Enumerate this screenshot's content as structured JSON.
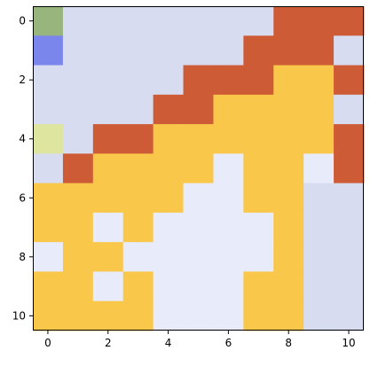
{
  "chart_data": {
    "type": "heatmap",
    "title": "",
    "xlabel": "",
    "ylabel": "",
    "x": [
      0,
      1,
      2,
      3,
      4,
      5,
      6,
      7,
      8,
      9,
      10
    ],
    "y": [
      0,
      1,
      2,
      3,
      4,
      5,
      6,
      7,
      8,
      9,
      10
    ],
    "xlim": [
      -0.5,
      10.5
    ],
    "ylim": [
      10.5,
      -0.5
    ],
    "x_ticks": [
      0,
      2,
      4,
      6,
      8,
      10
    ],
    "y_ticks": [
      0,
      2,
      4,
      6,
      8,
      10
    ],
    "x_tick_labels": [
      "0",
      "2",
      "4",
      "6",
      "8",
      "10"
    ],
    "y_tick_labels": [
      "0",
      "2",
      "4",
      "6",
      "8",
      "10"
    ],
    "grid": false,
    "legend": "none",
    "palette": {
      "G": "#99b57e",
      "B": "#7b86ed",
      "L": "#d8dcf0",
      "W": "#e8ebfa",
      "R": "#cd5b35",
      "Y": "#f9c74a",
      "P": "#dee59f"
    },
    "grid_cells": [
      [
        "G",
        "L",
        "L",
        "L",
        "L",
        "L",
        "L",
        "L",
        "R",
        "R",
        "R"
      ],
      [
        "B",
        "L",
        "L",
        "L",
        "L",
        "L",
        "L",
        "R",
        "R",
        "R",
        "L"
      ],
      [
        "L",
        "L",
        "L",
        "L",
        "L",
        "R",
        "R",
        "R",
        "Y",
        "Y",
        "R"
      ],
      [
        "L",
        "L",
        "L",
        "L",
        "R",
        "R",
        "Y",
        "Y",
        "Y",
        "Y",
        "L"
      ],
      [
        "P",
        "L",
        "R",
        "R",
        "Y",
        "Y",
        "Y",
        "Y",
        "Y",
        "Y",
        "R"
      ],
      [
        "L",
        "R",
        "Y",
        "Y",
        "Y",
        "Y",
        "W",
        "Y",
        "Y",
        "W",
        "R"
      ],
      [
        "Y",
        "Y",
        "Y",
        "Y",
        "Y",
        "W",
        "W",
        "Y",
        "Y",
        "L",
        "L"
      ],
      [
        "Y",
        "Y",
        "W",
        "Y",
        "W",
        "W",
        "W",
        "W",
        "Y",
        "L",
        "L"
      ],
      [
        "W",
        "Y",
        "Y",
        "W",
        "W",
        "W",
        "W",
        "W",
        "Y",
        "L",
        "L"
      ],
      [
        "Y",
        "Y",
        "W",
        "Y",
        "W",
        "W",
        "W",
        "Y",
        "Y",
        "L",
        "L"
      ],
      [
        "Y",
        "Y",
        "Y",
        "Y",
        "W",
        "W",
        "W",
        "Y",
        "Y",
        "L",
        "L"
      ]
    ]
  }
}
